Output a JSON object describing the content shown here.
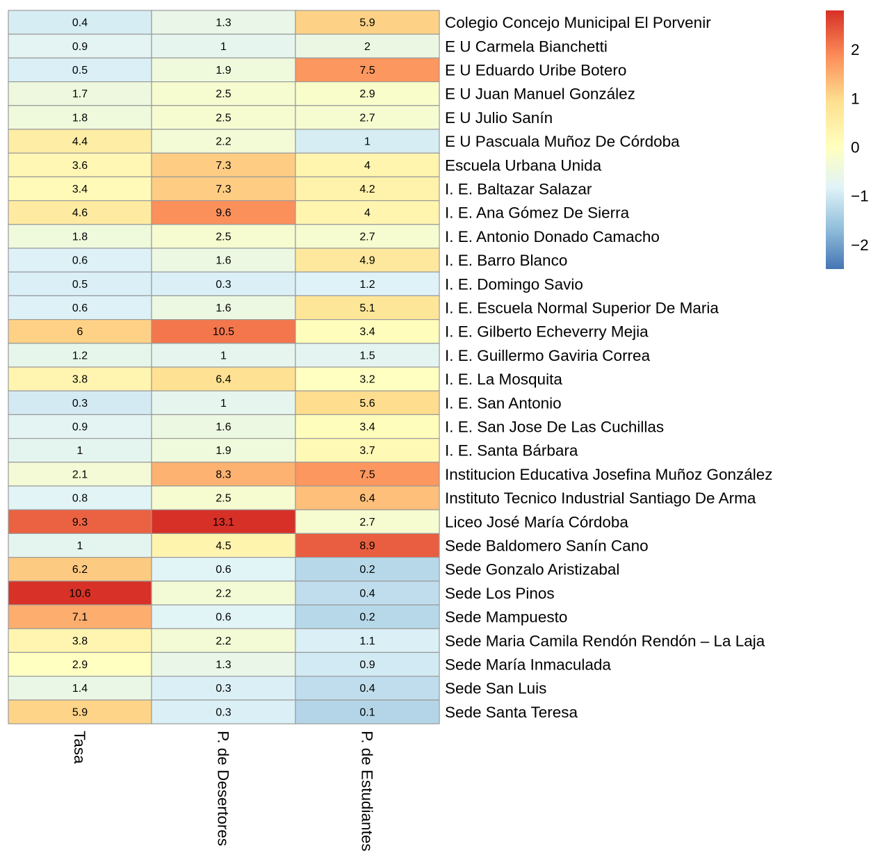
{
  "chart_data": {
    "type": "heatmap",
    "title": "",
    "columns": [
      "Tasa",
      "P. de Desertores",
      "P. de Estudiantes"
    ],
    "rows": [
      "Colegio Concejo Municipal El Porvenir",
      "E U Carmela Bianchetti",
      "E U Eduardo Uribe Botero",
      "E U Juan Manuel González",
      "E U Julio Sanín",
      "E U Pascuala Muñoz De Córdoba",
      "Escuela Urbana Unida",
      "I. E.  Baltazar Salazar",
      "I. E. Ana Gómez De Sierra",
      "I. E. Antonio Donado Camacho",
      "I. E. Barro Blanco",
      "I. E. Domingo Savio",
      "I. E. Escuela Normal Superior De Maria",
      "I. E. Gilberto Echeverry Mejia",
      "I. E. Guillermo Gaviria Correa",
      "I. E. La Mosquita",
      "I. E. San Antonio",
      "I. E. San Jose De Las Cuchillas",
      "I. E. Santa Bárbara",
      "Institucion Educativa Josefina  Muñoz González",
      "Instituto Tecnico Industrial Santiago De Arma",
      "Liceo José María Córdoba",
      "Sede Baldomero Sanín Cano",
      "Sede Gonzalo Aristizabal",
      "Sede Los Pinos",
      "Sede Mampuesto",
      "Sede Maria Camila Rendón Rendón – La Laja",
      "Sede María Inmaculada",
      "Sede San Luis",
      "Sede Santa Teresa"
    ],
    "labels": [
      [
        "0.4",
        "1.3",
        "5.9"
      ],
      [
        "0.9",
        "1",
        "2"
      ],
      [
        "0.5",
        "1.9",
        "7.5"
      ],
      [
        "1.7",
        "2.5",
        "2.9"
      ],
      [
        "1.8",
        "2.5",
        "2.7"
      ],
      [
        "4.4",
        "2.2",
        "1"
      ],
      [
        "3.6",
        "7.3",
        "4"
      ],
      [
        "3.4",
        "7.3",
        "4.2"
      ],
      [
        "4.6",
        "9.6",
        "4"
      ],
      [
        "1.8",
        "2.5",
        "2.7"
      ],
      [
        "0.6",
        "1.6",
        "4.9"
      ],
      [
        "0.5",
        "0.3",
        "1.2"
      ],
      [
        "0.6",
        "1.6",
        "5.1"
      ],
      [
        "6",
        "10.5",
        "3.4"
      ],
      [
        "1.2",
        "1",
        "1.5"
      ],
      [
        "3.8",
        "6.4",
        "3.2"
      ],
      [
        "0.3",
        "1",
        "5.6"
      ],
      [
        "0.9",
        "1.6",
        "3.4"
      ],
      [
        "1",
        "1.9",
        "3.7"
      ],
      [
        "2.1",
        "8.3",
        "7.5"
      ],
      [
        "0.8",
        "2.5",
        "6.4"
      ],
      [
        "9.3",
        "13.1",
        "2.7"
      ],
      [
        "1",
        "4.5",
        "8.9"
      ],
      [
        "6.2",
        "0.6",
        "0.2"
      ],
      [
        "10.6",
        "2.2",
        "0.4"
      ],
      [
        "7.1",
        "0.6",
        "0.2"
      ],
      [
        "3.8",
        "2.2",
        "1.1"
      ],
      [
        "2.9",
        "1.3",
        "0.9"
      ],
      [
        "1.4",
        "0.3",
        "0.4"
      ],
      [
        "5.9",
        "0.3",
        "0.1"
      ]
    ],
    "color_scale": {
      "min": -2.5,
      "max": 2.8,
      "ticks": [
        "2",
        "1",
        "0",
        "−1",
        "−2"
      ],
      "tick_values": [
        2,
        1,
        0,
        -1,
        -2
      ],
      "stops": [
        {
          "value": -2.5,
          "color": "#4575b4"
        },
        {
          "value": -1.667,
          "color": "#91bfdb"
        },
        {
          "value": -0.833,
          "color": "#e0f3f8"
        },
        {
          "value": 0,
          "color": "#ffffbf"
        },
        {
          "value": 0.933,
          "color": "#fee090"
        },
        {
          "value": 1.867,
          "color": "#fc8d59"
        },
        {
          "value": 2.8,
          "color": "#d73027"
        }
      ]
    },
    "grid": true,
    "legend_position": "right",
    "cell_border_color": "#9a9a9a"
  }
}
